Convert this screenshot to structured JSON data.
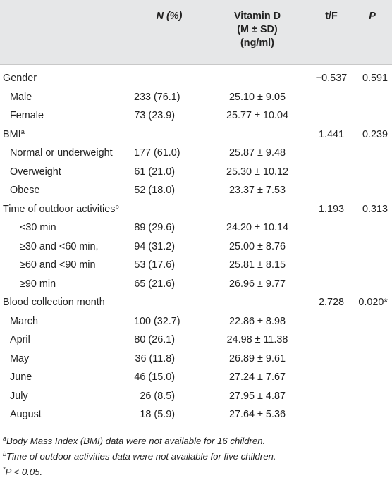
{
  "header": {
    "col_label": "",
    "col_n": "N (%)",
    "col_vd_line1": "Vitamin D",
    "col_vd_line2": "(M ± SD)",
    "col_vd_line3": "(ng/ml)",
    "col_t": "t/F",
    "col_p": "P"
  },
  "rows": [
    {
      "label": "Gender",
      "sup": "",
      "indent": 0,
      "n": "",
      "vd": "",
      "t": "−0.537",
      "p": "0.591"
    },
    {
      "label": "Male",
      "sup": "",
      "indent": 1,
      "n": "233 (76.1)",
      "vd": "25.10 ± 9.05",
      "t": "",
      "p": ""
    },
    {
      "label": "Female",
      "sup": "",
      "indent": 1,
      "n": "73 (23.9)",
      "vd": "25.77 ± 10.04",
      "t": "",
      "p": ""
    },
    {
      "label": "BMI",
      "sup": "a",
      "indent": 0,
      "n": "",
      "vd": "",
      "t": "1.441",
      "p": "0.239"
    },
    {
      "label": "Normal or underweight",
      "sup": "",
      "indent": 1,
      "n": "177 (61.0)",
      "vd": "25.87 ± 9.48",
      "t": "",
      "p": ""
    },
    {
      "label": "Overweight",
      "sup": "",
      "indent": 1,
      "n": "61 (21.0)",
      "vd": "25.30 ± 10.12",
      "t": "",
      "p": ""
    },
    {
      "label": "Obese",
      "sup": "",
      "indent": 1,
      "n": "52 (18.0)",
      "vd": "23.37 ± 7.53",
      "t": "",
      "p": ""
    },
    {
      "label": "Time of outdoor activities",
      "sup": "b",
      "indent": 0,
      "n": "",
      "vd": "",
      "t": "1.193",
      "p": "0.313"
    },
    {
      "label": "<30 min",
      "sup": "",
      "indent": 2,
      "n": "89 (29.6)",
      "vd": "24.20 ± 10.14",
      "t": "",
      "p": ""
    },
    {
      "label": "≥30 and <60 min,",
      "sup": "",
      "indent": 2,
      "n": "94 (31.2)",
      "vd": "25.00 ± 8.76",
      "t": "",
      "p": ""
    },
    {
      "label": "≥60 and <90 min",
      "sup": "",
      "indent": 2,
      "n": "53 (17.6)",
      "vd": "25.81 ± 8.15",
      "t": "",
      "p": ""
    },
    {
      "label": "≥90 min",
      "sup": "",
      "indent": 2,
      "n": "65 (21.6)",
      "vd": "26.96 ± 9.77",
      "t": "",
      "p": ""
    },
    {
      "label": "Blood collection month",
      "sup": "",
      "indent": 0,
      "n": "",
      "vd": "",
      "t": "2.728",
      "p": "0.020*"
    },
    {
      "label": "March",
      "sup": "",
      "indent": 1,
      "n": "100 (32.7)",
      "vd": "22.86 ± 8.98",
      "t": "",
      "p": ""
    },
    {
      "label": "April",
      "sup": "",
      "indent": 1,
      "n": "80 (26.1)",
      "vd": "24.98 ± 11.38",
      "t": "",
      "p": ""
    },
    {
      "label": "May",
      "sup": "",
      "indent": 1,
      "n": "36 (11.8)",
      "vd": "26.89 ± 9.61",
      "t": "",
      "p": ""
    },
    {
      "label": "June",
      "sup": "",
      "indent": 1,
      "n": "46 (15.0)",
      "vd": "27.24 ± 7.67",
      "t": "",
      "p": ""
    },
    {
      "label": "July",
      "sup": "",
      "indent": 1,
      "n": "26 (8.5)",
      "vd": "27.95 ± 4.87",
      "t": "",
      "p": ""
    },
    {
      "label": "August",
      "sup": "",
      "indent": 1,
      "n": "18 (5.9)",
      "vd": "27.64 ± 5.36",
      "t": "",
      "p": ""
    }
  ],
  "footnotes": [
    {
      "mark": "a",
      "text": "Body Mass Index (BMI) data were not available for 16 children."
    },
    {
      "mark": "b",
      "text": "Time of outdoor activities data were not available for five children."
    },
    {
      "mark": "*",
      "text": "P < 0.05."
    }
  ]
}
